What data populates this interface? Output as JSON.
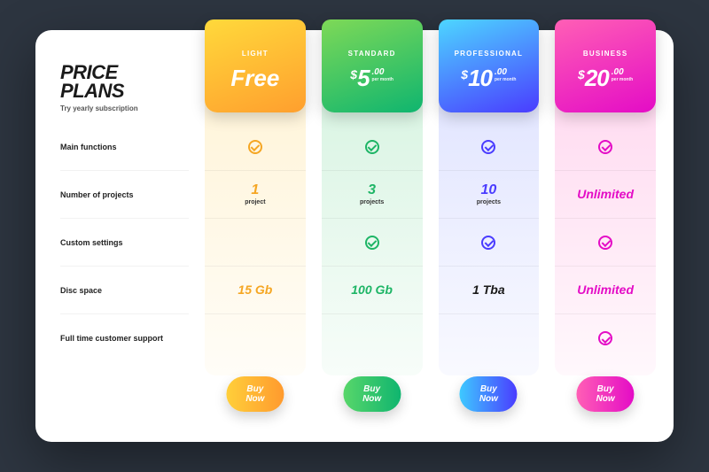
{
  "header": {
    "title_l1": "PRICE",
    "title_l2": "PLANS",
    "subtitle": "Try yearly subscription"
  },
  "features": [
    "Main functions",
    "Number of projects",
    "Custom settings",
    "Disc space",
    "Full time customer support"
  ],
  "btn_label": "Buy Now",
  "plans": [
    {
      "name": "LIGHT",
      "free_label": "Free",
      "currency": "",
      "amount": "",
      "cents": "",
      "per": "",
      "tab_gradient": "linear-gradient(160deg,#ffd93b 0%,#ff9f2e 100%)",
      "col_bg": "linear-gradient(180deg,rgba(255,200,60,0.22) 0%,rgba(255,200,60,0.04) 100%)",
      "accent": "#f5a623",
      "btn_gradient": "linear-gradient(90deg,#ffcf3a,#ff9a2e)",
      "rows": [
        {
          "type": "check",
          "on": true
        },
        {
          "type": "val",
          "big": "1",
          "sm": "project"
        },
        {
          "type": "blank"
        },
        {
          "type": "text",
          "big": "15 Gb"
        },
        {
          "type": "blank"
        }
      ]
    },
    {
      "name": "STANDARD",
      "currency": "$",
      "amount": "5",
      "cents": ".00",
      "per": "per month",
      "tab_gradient": "linear-gradient(160deg,#7ed957 0%,#0fb56f 100%)",
      "col_bg": "linear-gradient(180deg,rgba(60,200,110,0.22) 0%,rgba(60,200,110,0.04) 100%)",
      "accent": "#1eb566",
      "btn_gradient": "linear-gradient(90deg,#58d66a,#0fb56f)",
      "rows": [
        {
          "type": "check",
          "on": true
        },
        {
          "type": "val",
          "big": "3",
          "sm": "projects"
        },
        {
          "type": "check",
          "on": true
        },
        {
          "type": "text",
          "big": "100 Gb"
        },
        {
          "type": "blank"
        }
      ]
    },
    {
      "name": "PROFESSIONAL",
      "currency": "$",
      "amount": "10",
      "cents": ".00",
      "per": "per month",
      "tab_gradient": "linear-gradient(160deg,#4dd6ff 0%,#4a3cff 100%)",
      "col_bg": "linear-gradient(180deg,rgba(90,110,255,0.20) 0%,rgba(90,110,255,0.04) 100%)",
      "accent": "#4a3cff",
      "btn_gradient": "linear-gradient(90deg,#3ec9ff,#4a3cff)",
      "rows": [
        {
          "type": "check",
          "on": true
        },
        {
          "type": "val",
          "big": "10",
          "sm": "projects"
        },
        {
          "type": "check",
          "on": true
        },
        {
          "type": "text",
          "big": "1 Tba",
          "color": "#1a1a1a"
        },
        {
          "type": "blank"
        }
      ]
    },
    {
      "name": "BUSINESS",
      "currency": "$",
      "amount": "20",
      "cents": ".00",
      "per": "per month",
      "tab_gradient": "linear-gradient(160deg,#ff5fb5 0%,#e40cc6 100%)",
      "col_bg": "linear-gradient(180deg,rgba(255,70,180,0.22) 0%,rgba(255,70,180,0.04) 100%)",
      "accent": "#e40cc6",
      "btn_gradient": "linear-gradient(90deg,#ff5fb5,#e40cc6)",
      "rows": [
        {
          "type": "check",
          "on": true
        },
        {
          "type": "text",
          "big": "Unlimited"
        },
        {
          "type": "check",
          "on": true
        },
        {
          "type": "text",
          "big": "Unlimited"
        },
        {
          "type": "check",
          "on": true
        }
      ]
    }
  ]
}
